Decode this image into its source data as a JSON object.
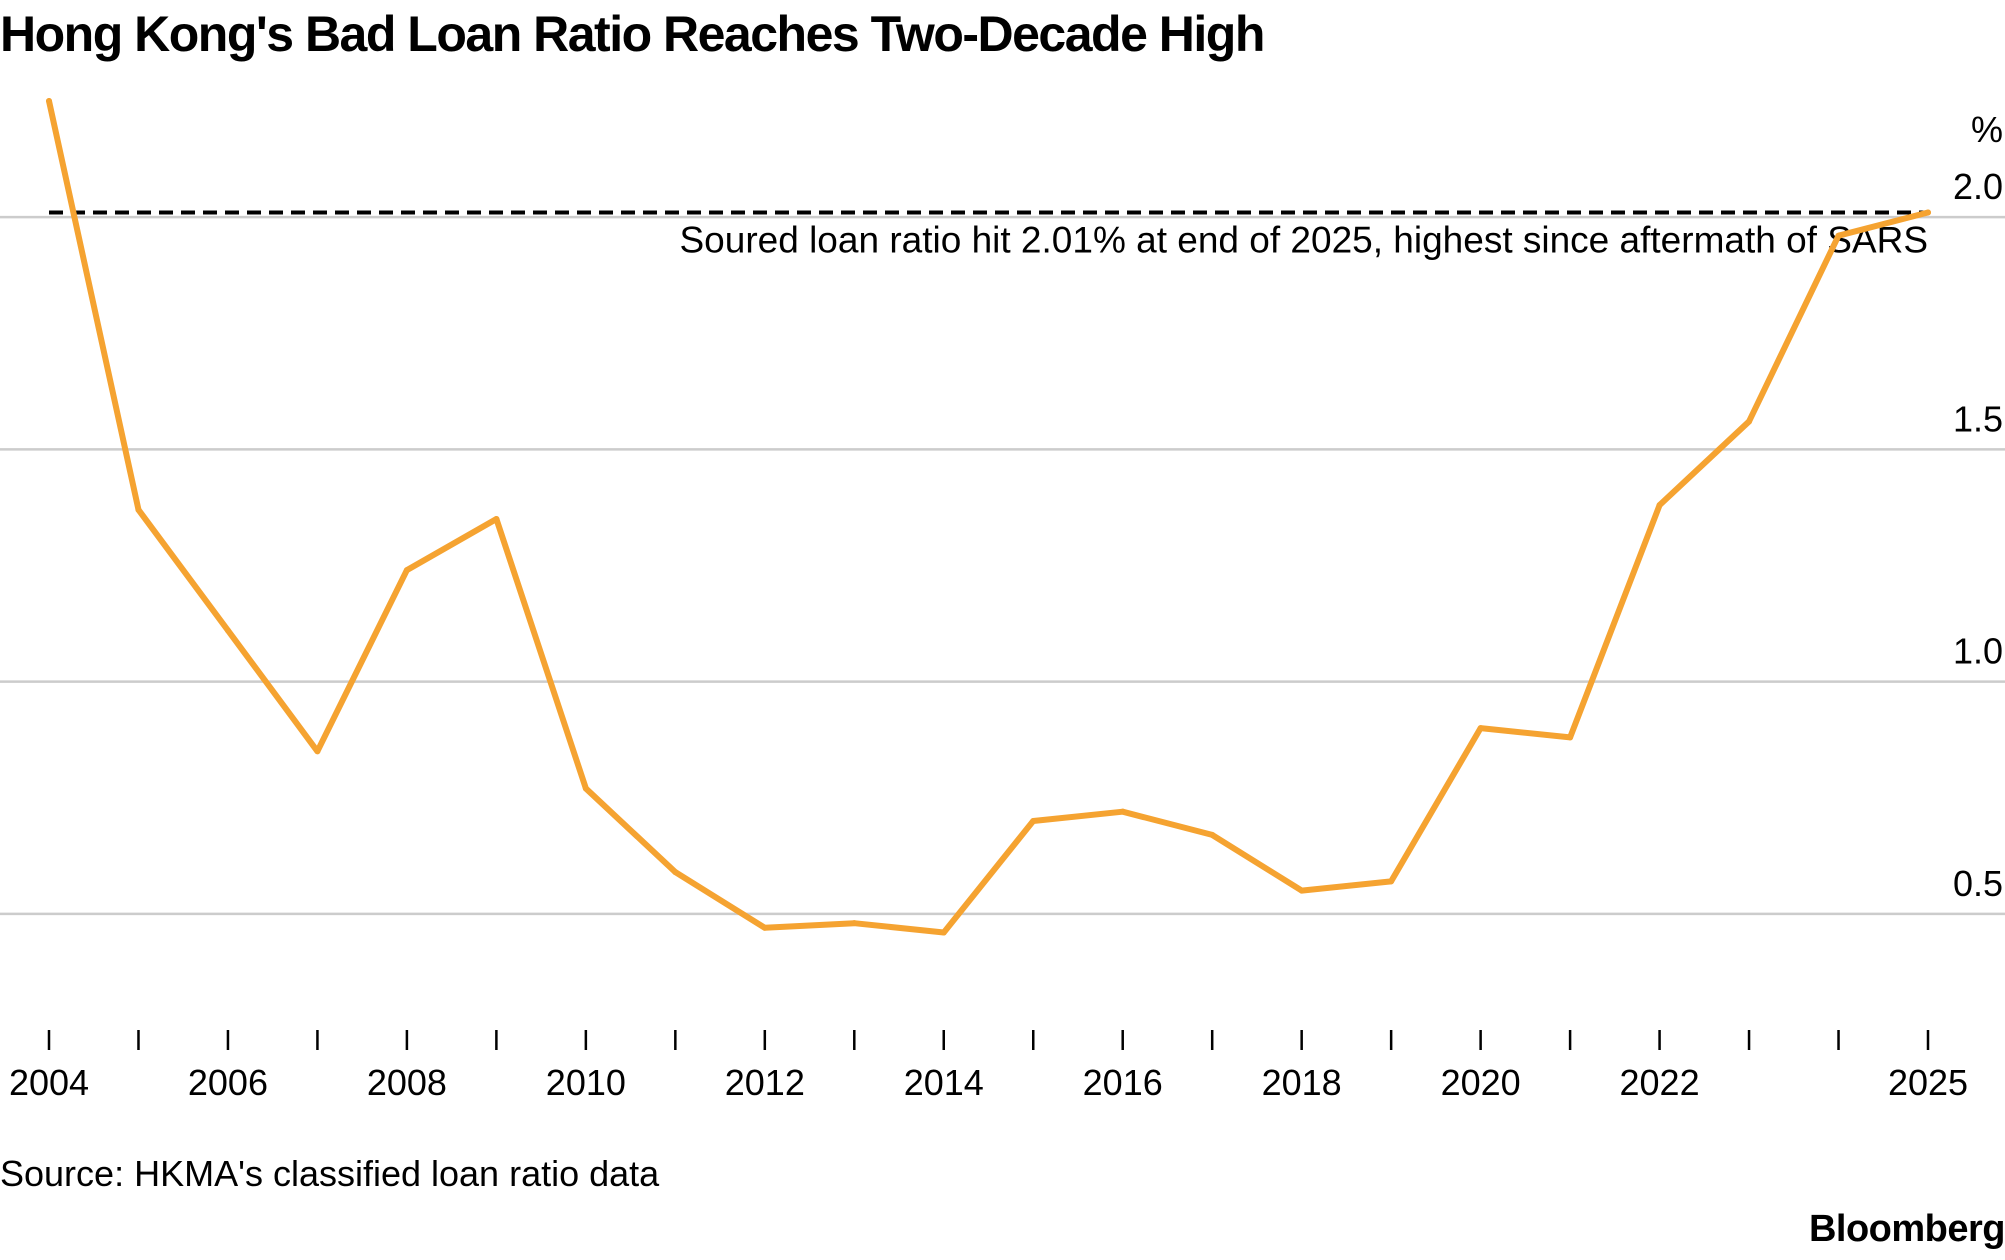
{
  "title": "Hong Kong's Bad Loan Ratio Reaches Two-Decade High",
  "source": "Source: HKMA's classified loan ratio data",
  "brand": "Bloomberg",
  "colors": {
    "line": "#F5A331",
    "grid": "#CCCCCC",
    "text": "#000000",
    "background": "#FFFFFF"
  },
  "chart_data": {
    "type": "line",
    "title": "Hong Kong's Bad Loan Ratio Reaches Two-Decade High",
    "xlabel": "",
    "ylabel": "%",
    "unit": "%",
    "xlim": [
      2004,
      2025
    ],
    "ylim": [
      0.25,
      2.25
    ],
    "yticks": [
      0.5,
      1.0,
      1.5,
      2.0
    ],
    "ytick_labels": [
      "0.5",
      "1.0",
      "1.5",
      "2.0"
    ],
    "xticks": [
      2004,
      2005,
      2006,
      2007,
      2008,
      2009,
      2010,
      2011,
      2012,
      2013,
      2014,
      2015,
      2016,
      2017,
      2018,
      2019,
      2020,
      2021,
      2022,
      2023,
      2024,
      2025
    ],
    "xtick_labels": [
      {
        "value": 2004,
        "label": "2004"
      },
      {
        "value": 2006,
        "label": "2006"
      },
      {
        "value": 2008,
        "label": "2008"
      },
      {
        "value": 2010,
        "label": "2010"
      },
      {
        "value": 2012,
        "label": "2012"
      },
      {
        "value": 2014,
        "label": "2014"
      },
      {
        "value": 2016,
        "label": "2016"
      },
      {
        "value": 2018,
        "label": "2018"
      },
      {
        "value": 2020,
        "label": "2020"
      },
      {
        "value": 2022,
        "label": "2022"
      },
      {
        "value": 2025,
        "label": "2025"
      }
    ],
    "grid": "horizontal",
    "legend": "none",
    "series": [
      {
        "x": [
          2004,
          2005,
          2006,
          2007,
          2008,
          2009,
          2010,
          2011,
          2012,
          2013,
          2014,
          2015,
          2016,
          2017,
          2018,
          2019,
          2020,
          2021,
          2022,
          2023,
          2024,
          2025
        ],
        "values": [
          2.25,
          1.37,
          1.11,
          0.85,
          1.24,
          1.35,
          0.77,
          0.59,
          0.47,
          0.48,
          0.46,
          0.7,
          0.72,
          0.67,
          0.55,
          0.57,
          0.9,
          0.88,
          1.38,
          1.56,
          1.96,
          2.01
        ]
      }
    ],
    "reference_line": {
      "value": 2.01,
      "style": "dashed",
      "label": "Soured loan ratio hit 2.01% at end of 2025, highest since aftermath of SARS"
    }
  }
}
